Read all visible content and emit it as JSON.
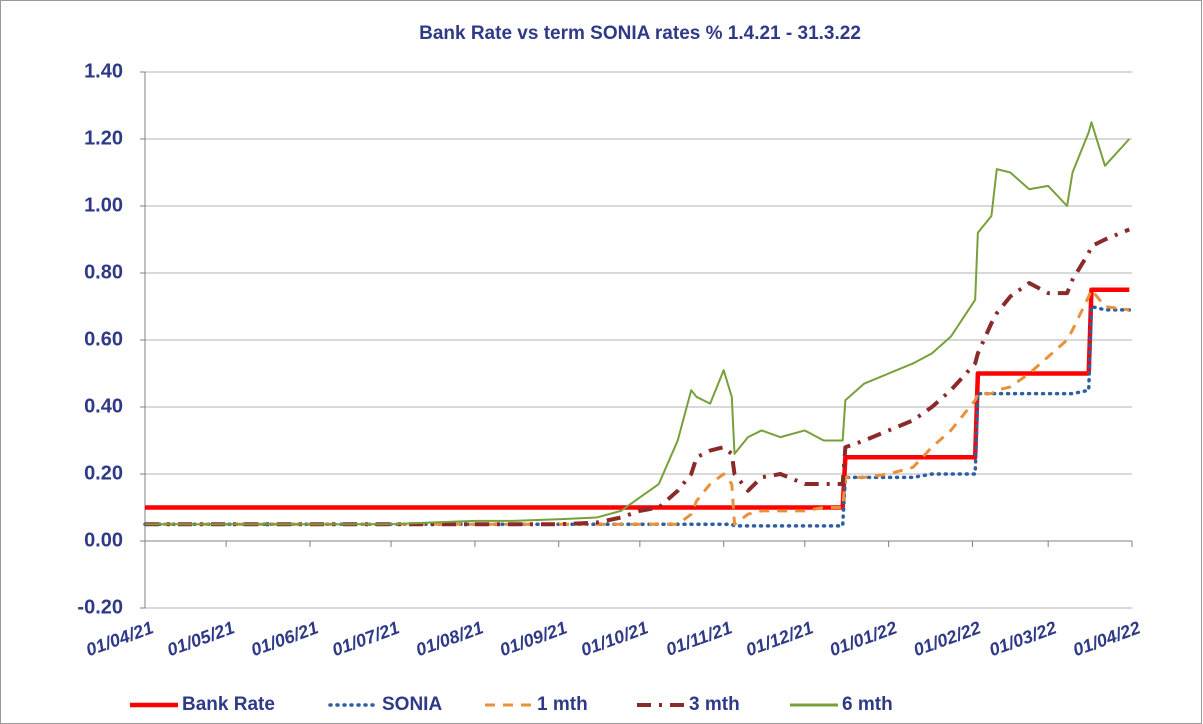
{
  "chart_data": {
    "type": "line",
    "title": "Bank Rate vs term SONIA rates % 1.4.21 - 31.3.22",
    "x": [
      "2021-04-01",
      "2021-04-15",
      "2021-05-01",
      "2021-05-15",
      "2021-06-01",
      "2021-06-15",
      "2021-07-01",
      "2021-07-15",
      "2021-08-01",
      "2021-08-15",
      "2021-09-01",
      "2021-09-15",
      "2021-09-24",
      "2021-10-01",
      "2021-10-08",
      "2021-10-15",
      "2021-10-20",
      "2021-10-22",
      "2021-10-27",
      "2021-11-01",
      "2021-11-04",
      "2021-11-05",
      "2021-11-10",
      "2021-11-15",
      "2021-11-22",
      "2021-12-01",
      "2021-12-08",
      "2021-12-15",
      "2021-12-16",
      "2021-12-23",
      "2022-01-01",
      "2022-01-10",
      "2022-01-17",
      "2022-01-24",
      "2022-02-02",
      "2022-02-03",
      "2022-02-08",
      "2022-02-10",
      "2022-02-15",
      "2022-02-22",
      "2022-03-01",
      "2022-03-08",
      "2022-03-10",
      "2022-03-16",
      "2022-03-17",
      "2022-03-22",
      "2022-03-31"
    ],
    "series": [
      {
        "name": "Bank Rate",
        "color": "#ff0000",
        "line_style": "solid",
        "values": [
          0.1,
          0.1,
          0.1,
          0.1,
          0.1,
          0.1,
          0.1,
          0.1,
          0.1,
          0.1,
          0.1,
          0.1,
          0.1,
          0.1,
          0.1,
          0.1,
          0.1,
          0.1,
          0.1,
          0.1,
          0.1,
          0.1,
          0.1,
          0.1,
          0.1,
          0.1,
          0.1,
          0.1,
          0.25,
          0.25,
          0.25,
          0.25,
          0.25,
          0.25,
          0.25,
          0.5,
          0.5,
          0.5,
          0.5,
          0.5,
          0.5,
          0.5,
          0.5,
          0.5,
          0.75,
          0.75,
          0.75
        ]
      },
      {
        "name": "SONIA",
        "color": "#2e5fa3",
        "line_style": "dotted",
        "values": [
          0.05,
          0.05,
          0.05,
          0.05,
          0.05,
          0.05,
          0.05,
          0.05,
          0.05,
          0.05,
          0.05,
          0.05,
          0.05,
          0.05,
          0.05,
          0.05,
          0.05,
          0.05,
          0.05,
          0.05,
          0.05,
          0.045,
          0.045,
          0.045,
          0.045,
          0.045,
          0.045,
          0.045,
          0.19,
          0.19,
          0.19,
          0.19,
          0.2,
          0.2,
          0.2,
          0.44,
          0.44,
          0.44,
          0.44,
          0.44,
          0.44,
          0.44,
          0.44,
          0.45,
          0.7,
          0.69,
          0.69
        ]
      },
      {
        "name": "1 mth",
        "color": "#e8913a",
        "line_style": "dashed",
        "values": [
          0.05,
          0.05,
          0.05,
          0.05,
          0.05,
          0.05,
          0.05,
          0.05,
          0.05,
          0.05,
          0.05,
          0.05,
          0.05,
          0.05,
          0.05,
          0.05,
          0.08,
          0.12,
          0.17,
          0.2,
          0.17,
          0.05,
          0.08,
          0.09,
          0.09,
          0.09,
          0.1,
          0.1,
          0.19,
          0.19,
          0.2,
          0.22,
          0.28,
          0.33,
          0.42,
          0.44,
          0.44,
          0.45,
          0.46,
          0.5,
          0.55,
          0.6,
          0.63,
          0.73,
          0.75,
          0.7,
          0.69
        ]
      },
      {
        "name": "3 mth",
        "color": "#8b2a2a",
        "line_style": "dashdot",
        "values": [
          0.05,
          0.05,
          0.05,
          0.05,
          0.05,
          0.05,
          0.05,
          0.05,
          0.05,
          0.05,
          0.05,
          0.055,
          0.07,
          0.09,
          0.1,
          0.15,
          0.2,
          0.25,
          0.27,
          0.28,
          0.26,
          0.2,
          0.15,
          0.19,
          0.2,
          0.17,
          0.17,
          0.17,
          0.28,
          0.3,
          0.33,
          0.36,
          0.4,
          0.45,
          0.53,
          0.56,
          0.65,
          0.68,
          0.73,
          0.77,
          0.74,
          0.74,
          0.78,
          0.86,
          0.88,
          0.9,
          0.93
        ]
      },
      {
        "name": "6 mth",
        "color": "#77a03a",
        "line_style": "solid",
        "values": [
          0.05,
          0.05,
          0.05,
          0.05,
          0.05,
          0.05,
          0.05,
          0.055,
          0.06,
          0.06,
          0.065,
          0.07,
          0.09,
          0.13,
          0.17,
          0.3,
          0.45,
          0.43,
          0.41,
          0.51,
          0.43,
          0.26,
          0.31,
          0.33,
          0.31,
          0.33,
          0.3,
          0.3,
          0.42,
          0.47,
          0.5,
          0.53,
          0.56,
          0.61,
          0.72,
          0.92,
          0.97,
          1.11,
          1.1,
          1.05,
          1.06,
          1.0,
          1.1,
          1.22,
          1.25,
          1.12,
          1.2
        ]
      }
    ],
    "xlim": [
      "2021-04-01",
      "2022-04-01"
    ],
    "xticks": [
      {
        "value": "2021-04-01",
        "label": "01/04/21"
      },
      {
        "value": "2021-05-01",
        "label": "01/05/21"
      },
      {
        "value": "2021-06-01",
        "label": "01/06/21"
      },
      {
        "value": "2021-07-01",
        "label": "01/07/21"
      },
      {
        "value": "2021-08-01",
        "label": "01/08/21"
      },
      {
        "value": "2021-09-01",
        "label": "01/09/21"
      },
      {
        "value": "2021-10-01",
        "label": "01/10/21"
      },
      {
        "value": "2021-11-01",
        "label": "01/11/21"
      },
      {
        "value": "2021-12-01",
        "label": "01/12/21"
      },
      {
        "value": "2022-01-01",
        "label": "01/01/22"
      },
      {
        "value": "2022-02-01",
        "label": "01/02/22"
      },
      {
        "value": "2022-03-01",
        "label": "01/03/22"
      },
      {
        "value": "2022-04-01",
        "label": "01/04/22"
      }
    ],
    "ylim": [
      -0.2,
      1.4
    ],
    "yticks": [
      {
        "value": -0.2,
        "label": "-0.20"
      },
      {
        "value": 0,
        "label": "0.00"
      },
      {
        "value": 0.2,
        "label": "0.20"
      },
      {
        "value": 0.4,
        "label": "0.40"
      },
      {
        "value": 0.6,
        "label": "0.60"
      },
      {
        "value": 0.8,
        "label": "0.80"
      },
      {
        "value": 1.0,
        "label": "1.00"
      },
      {
        "value": 1.2,
        "label": "1.20"
      },
      {
        "value": 1.4,
        "label": "1.40"
      }
    ],
    "grid": true,
    "legend": "bottom"
  }
}
